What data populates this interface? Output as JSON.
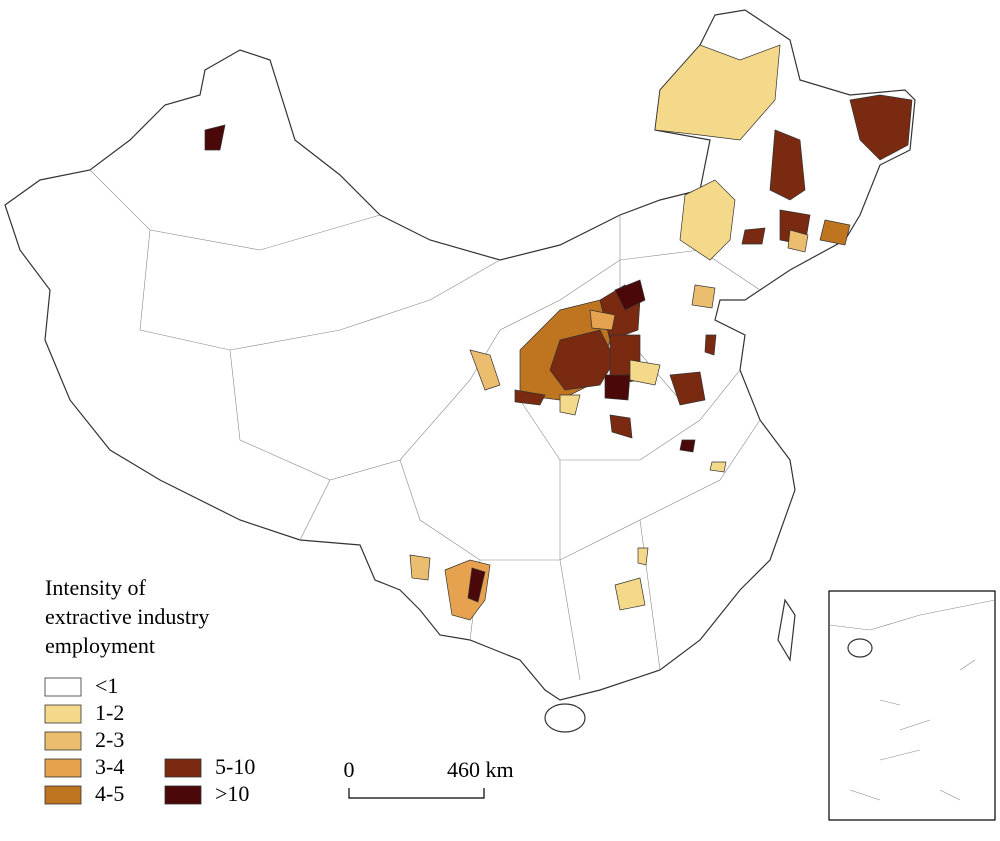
{
  "legend": {
    "title_lines": [
      "Intensity of",
      "extractive industry",
      "employment"
    ],
    "items": [
      {
        "label": "<1",
        "color": "#ffffff"
      },
      {
        "label": "1-2",
        "color": "#f4d98a"
      },
      {
        "label": "2-3",
        "color": "#ebbd6e"
      },
      {
        "label": "3-4",
        "color": "#e6a24e"
      },
      {
        "label": "4-5",
        "color": "#bf7420"
      },
      {
        "label": "5-10",
        "color": "#7a2a10"
      },
      {
        "label": ">10",
        "color": "#4a0808"
      }
    ]
  },
  "scale_bar": {
    "start": "0",
    "end": "460 km"
  }
}
